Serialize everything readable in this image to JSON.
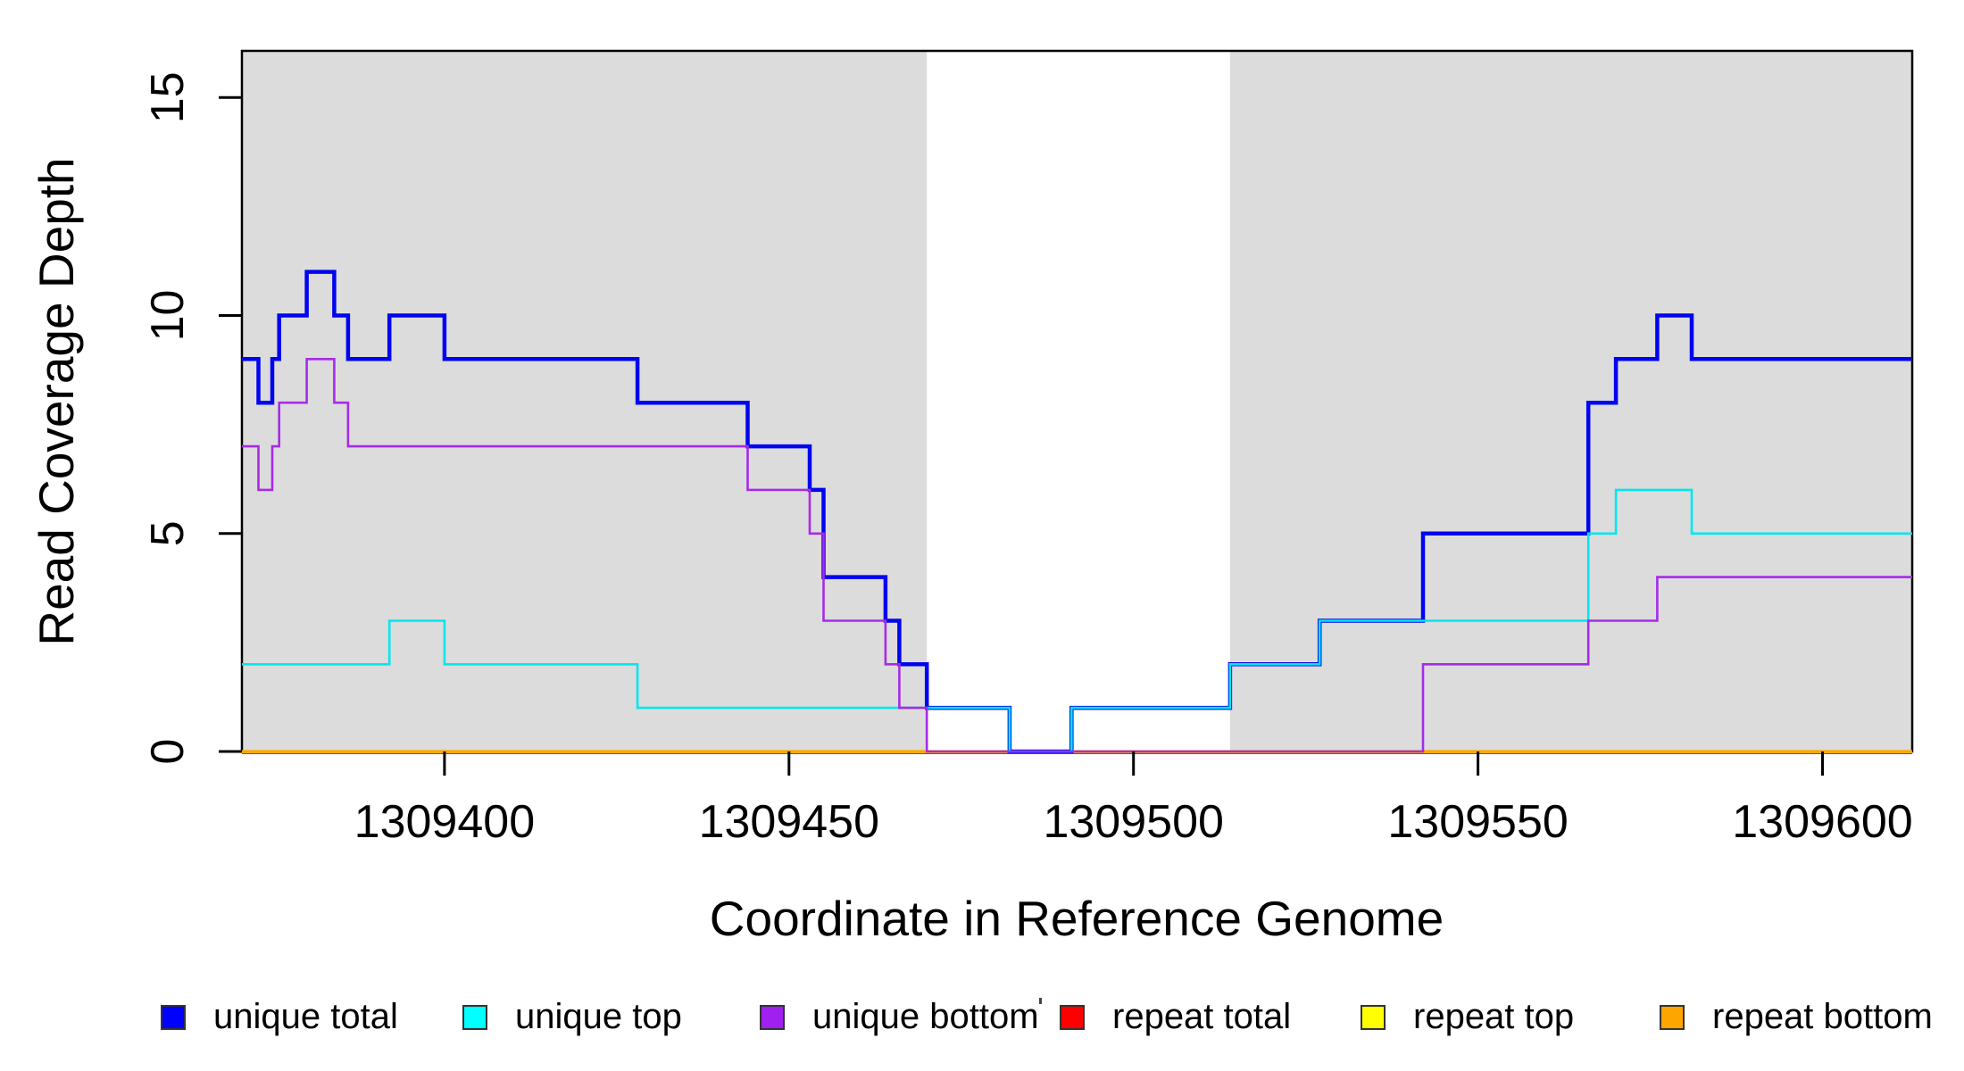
{
  "chart_data": {
    "type": "line",
    "style": "step",
    "title": "",
    "xlabel": "Coordinate in Reference Genome",
    "ylabel": "Read Coverage Depth",
    "xlim": [
      1309370.6,
      1309613.0
    ],
    "ylim": [
      0,
      16.1
    ],
    "xticks": [
      "1309400",
      "1309450",
      "1309500",
      "1309550",
      "1309600"
    ],
    "xtick_values": [
      1309400,
      1309450,
      1309500,
      1309550,
      1309600
    ],
    "yticks": [
      "0",
      "5",
      "10",
      "15"
    ],
    "ytick_values": [
      0,
      5,
      10,
      15
    ],
    "grid": false,
    "legend_position": "bottom",
    "frame_color": "#000000",
    "shade_color": "#dcdcdc",
    "shaded_regions": [
      {
        "x0": 1309370.6,
        "x1": 1309470,
        "label": "unique-region-left"
      },
      {
        "x0": 1309514.0,
        "x1": 1309613,
        "label": "unique-region-right"
      }
    ],
    "draw_order": [
      3,
      4,
      5,
      0,
      1,
      2
    ],
    "series": [
      {
        "name": "unique total",
        "color": "#0004f0",
        "swatch": "#0000ff",
        "width": 4.5,
        "y_offset": 0,
        "steps": [
          [
            1309370.6,
            9
          ],
          [
            1309373,
            8
          ],
          [
            1309375,
            9
          ],
          [
            1309376,
            10
          ],
          [
            1309380,
            11
          ],
          [
            1309384,
            10
          ],
          [
            1309386,
            9
          ],
          [
            1309392,
            10
          ],
          [
            1309400,
            9
          ],
          [
            1309428,
            8
          ],
          [
            1309444,
            7
          ],
          [
            1309453,
            6
          ],
          [
            1309455,
            4
          ],
          [
            1309464,
            3
          ],
          [
            1309466,
            2
          ],
          [
            1309470,
            1
          ],
          [
            1309482,
            0
          ],
          [
            1309491,
            1
          ],
          [
            1309514,
            2
          ],
          [
            1309527,
            3
          ],
          [
            1309542,
            5
          ],
          [
            1309566,
            8
          ],
          [
            1309570,
            9
          ],
          [
            1309576,
            10
          ],
          [
            1309581,
            9
          ]
        ]
      },
      {
        "name": "unique top",
        "color": "#00e6f2",
        "swatch": "#00ffff",
        "width": 2.6,
        "y_offset": 0,
        "steps": [
          [
            1309370.6,
            2
          ],
          [
            1309392,
            3
          ],
          [
            1309400,
            2
          ],
          [
            1309428,
            1
          ],
          [
            1309482,
            0
          ],
          [
            1309491,
            1
          ],
          [
            1309514,
            2
          ],
          [
            1309527,
            3
          ],
          [
            1309566,
            5
          ],
          [
            1309570,
            6
          ],
          [
            1309581,
            5
          ]
        ]
      },
      {
        "name": "unique bottom",
        "color": "#a62be8",
        "swatch": "#a020f0",
        "width": 2.6,
        "y_offset": 0,
        "steps": [
          [
            1309370.6,
            7
          ],
          [
            1309373,
            6
          ],
          [
            1309375,
            7
          ],
          [
            1309376,
            8
          ],
          [
            1309380,
            9
          ],
          [
            1309384,
            8
          ],
          [
            1309386,
            7
          ],
          [
            1309444,
            6
          ],
          [
            1309453,
            5
          ],
          [
            1309455,
            3
          ],
          [
            1309464,
            2
          ],
          [
            1309466,
            1
          ],
          [
            1309470,
            0
          ],
          [
            1309542,
            2
          ],
          [
            1309566,
            3
          ],
          [
            1309576,
            4
          ]
        ]
      },
      {
        "name": "repeat total",
        "color": "#dd0000",
        "swatch": "#ff0000",
        "width": 2.6,
        "y_offset": 1.6,
        "steps": [
          [
            1309370.6,
            0
          ]
        ]
      },
      {
        "name": "repeat top",
        "color": "#ffff00",
        "swatch": "#ffff00",
        "width": 2.6,
        "y_offset": 0.6,
        "steps": [
          [
            1309370.6,
            0
          ]
        ]
      },
      {
        "name": "repeat bottom",
        "color": "#ffa500",
        "swatch": "#ffa500",
        "width": 3.2,
        "y_offset": 0,
        "steps": [
          [
            1309370.6,
            0
          ]
        ]
      }
    ]
  }
}
